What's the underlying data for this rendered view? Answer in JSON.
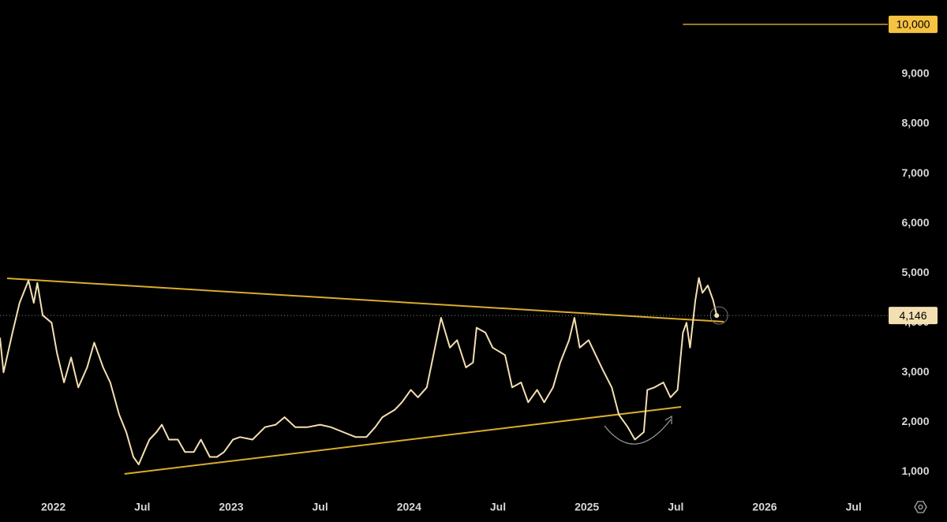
{
  "chart_data": {
    "type": "line",
    "x": [
      2021.7,
      2021.72,
      2021.77,
      2021.81,
      2021.86,
      2021.89,
      2021.91,
      2021.94,
      2021.99,
      2022.02,
      2022.06,
      2022.1,
      2022.14,
      2022.19,
      2022.23,
      2022.28,
      2022.32,
      2022.37,
      2022.41,
      2022.45,
      2022.48,
      2022.51,
      2022.54,
      2022.58,
      2022.61,
      2022.65,
      2022.7,
      2022.74,
      2022.79,
      2022.83,
      2022.88,
      2022.92,
      2022.96,
      2023.01,
      2023.05,
      2023.12,
      2023.19,
      2023.25,
      2023.3,
      2023.36,
      2023.43,
      2023.5,
      2023.56,
      2023.63,
      2023.7,
      2023.76,
      2023.81,
      2023.85,
      2023.92,
      2023.96,
      2024.01,
      2024.05,
      2024.1,
      2024.14,
      2024.18,
      2024.23,
      2024.27,
      2024.32,
      2024.36,
      2024.38,
      2024.43,
      2024.47,
      2024.54,
      2024.58,
      2024.63,
      2024.67,
      2024.72,
      2024.76,
      2024.81,
      2024.85,
      2024.9,
      2024.93,
      2024.96,
      2025.01,
      2025.05,
      2025.09,
      2025.14,
      2025.18,
      2025.23,
      2025.27,
      2025.32,
      2025.34,
      2025.38,
      2025.43,
      2025.47,
      2025.51,
      2025.54,
      2025.56,
      2025.58,
      2025.61,
      2025.63,
      2025.65,
      2025.68,
      2025.71,
      2025.73
    ],
    "values": [
      3700,
      3000,
      3800,
      4400,
      4850,
      4400,
      4800,
      4150,
      4000,
      3400,
      2800,
      3300,
      2700,
      3100,
      3600,
      3100,
      2800,
      2150,
      1800,
      1300,
      1150,
      1400,
      1650,
      1800,
      1950,
      1650,
      1650,
      1400,
      1400,
      1650,
      1300,
      1300,
      1400,
      1650,
      1700,
      1650,
      1900,
      1950,
      2100,
      1900,
      1900,
      1950,
      1900,
      1800,
      1700,
      1700,
      1900,
      2100,
      2250,
      2400,
      2650,
      2500,
      2700,
      3400,
      4100,
      3500,
      3650,
      3100,
      3200,
      3900,
      3800,
      3500,
      3350,
      2700,
      2800,
      2400,
      2650,
      2400,
      2700,
      3200,
      3650,
      4100,
      3500,
      3650,
      3350,
      3050,
      2700,
      2150,
      1900,
      1650,
      1800,
      2650,
      2700,
      2800,
      2500,
      2650,
      3800,
      4000,
      3500,
      4450,
      4900,
      4600,
      4750,
      4450,
      4146
    ],
    "color": "#f3dfb2",
    "xlim": [
      2021.7,
      2026.67
    ],
    "ylim": [
      500,
      10490
    ],
    "xticks": [
      {
        "value": 2022,
        "label": "2022"
      },
      {
        "value": 2022.5,
        "label": "Jul"
      },
      {
        "value": 2023,
        "label": "2023"
      },
      {
        "value": 2023.5,
        "label": "Jul"
      },
      {
        "value": 2024,
        "label": "2024"
      },
      {
        "value": 2024.5,
        "label": "Jul"
      },
      {
        "value": 2025,
        "label": "2025"
      },
      {
        "value": 2025.5,
        "label": "Jul"
      },
      {
        "value": 2026,
        "label": "2026"
      },
      {
        "value": 2026.5,
        "label": "Jul"
      }
    ],
    "yticks": [
      {
        "value": 1000,
        "label": "1,000"
      },
      {
        "value": 2000,
        "label": "2,000"
      },
      {
        "value": 3000,
        "label": "3,000"
      },
      {
        "value": 4000,
        "label": "4,000"
      },
      {
        "value": 5000,
        "label": "5,000"
      },
      {
        "value": 6000,
        "label": "6,000"
      },
      {
        "value": 7000,
        "label": "7,000"
      },
      {
        "value": 8000,
        "label": "8,000"
      },
      {
        "value": 9000,
        "label": "9,000"
      }
    ],
    "trendlines": [
      {
        "color": "#d9ac2c",
        "x": [
          2021.74,
          2025.77
        ],
        "values": [
          4892,
          4020
        ]
      },
      {
        "color": "#d9ac2c",
        "x": [
          2022.4,
          2025.53
        ],
        "values": [
          960,
          2308
        ]
      }
    ],
    "price_lines": [
      {
        "value": 10000,
        "label": "10,000",
        "from": 2025.54,
        "color": "#f5c242",
        "style": "solid"
      },
      {
        "value": 4146,
        "label": "4,146",
        "from": 2021.7,
        "color": "#f3dfb2",
        "style": "dotted"
      }
    ]
  }
}
